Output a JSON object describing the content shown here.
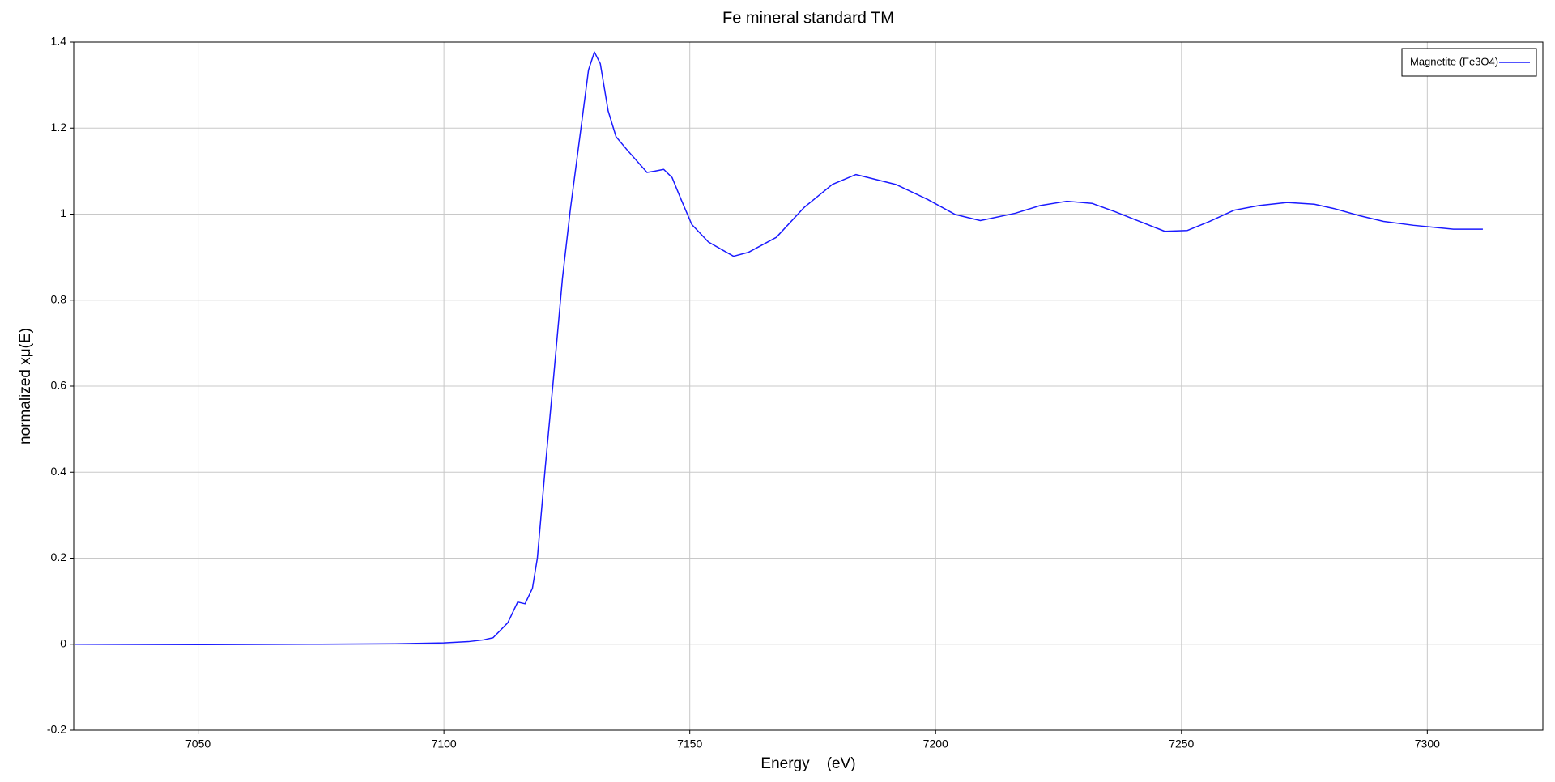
{
  "chart_data": {
    "type": "line",
    "title": "Fe mineral standard TM",
    "x_label": "Energy    (eV)",
    "y_label": "normalized xμ(E)",
    "series": [
      {
        "name": "Magnetite (Fe3O4)",
        "color": "#1a1aff",
        "x": [
          7025,
          7050,
          7075,
          7090,
          7100,
          7105,
          7108,
          7110,
          7113,
          7115,
          7116.5,
          7118,
          7119,
          7120.6,
          7122.3,
          7124.1,
          7125.7,
          7128.1,
          7129.4,
          7130.6,
          7131.8,
          7133.4,
          7135,
          7137.2,
          7141.3,
          7142.9,
          7144.7,
          7146.4,
          7148.2,
          7150.4,
          7153.8,
          7158.9,
          7161.9,
          7167.6,
          7173.3,
          7179,
          7183.8,
          7191.9,
          7198.4,
          7204,
          7209.1,
          7216.2,
          7221.3,
          7226.7,
          7231.8,
          7236.4,
          7241.5,
          7246.6,
          7251.2,
          7255.7,
          7260.7,
          7265.8,
          7271.5,
          7277,
          7281,
          7286,
          7291.1,
          7297.2,
          7305.3,
          7311.3
        ],
        "values": [
          0,
          -0.001,
          0,
          0.001,
          0.003,
          0.006,
          0.01,
          0.015,
          0.05,
          0.098,
          0.094,
          0.13,
          0.2,
          0.41,
          0.62,
          0.85,
          1.01,
          1.22,
          1.335,
          1.377,
          1.35,
          1.24,
          1.18,
          1.15,
          1.097,
          1.1,
          1.104,
          1.085,
          1.035,
          0.976,
          0.935,
          0.902,
          0.911,
          0.946,
          1.016,
          1.069,
          1.092,
          1.069,
          1.034,
          0.999,
          0.985,
          1.002,
          1.02,
          1.03,
          1.025,
          1.006,
          0.983,
          0.96,
          0.962,
          0.983,
          1.009,
          1.02,
          1.027,
          1.023,
          1.013,
          0.997,
          0.983,
          0.974,
          0.965,
          0.965
        ]
      }
    ],
    "xlim": [
      7024.7,
      7323.5
    ],
    "ylim": [
      -0.2,
      1.4
    ],
    "xticks": [
      7050,
      7100,
      7150,
      7200,
      7250,
      7300
    ],
    "yticks": [
      -0.2,
      0,
      0.2,
      0.4,
      0.6,
      0.8,
      1,
      1.2,
      1.4
    ],
    "grid": true,
    "legend": "upper right"
  }
}
